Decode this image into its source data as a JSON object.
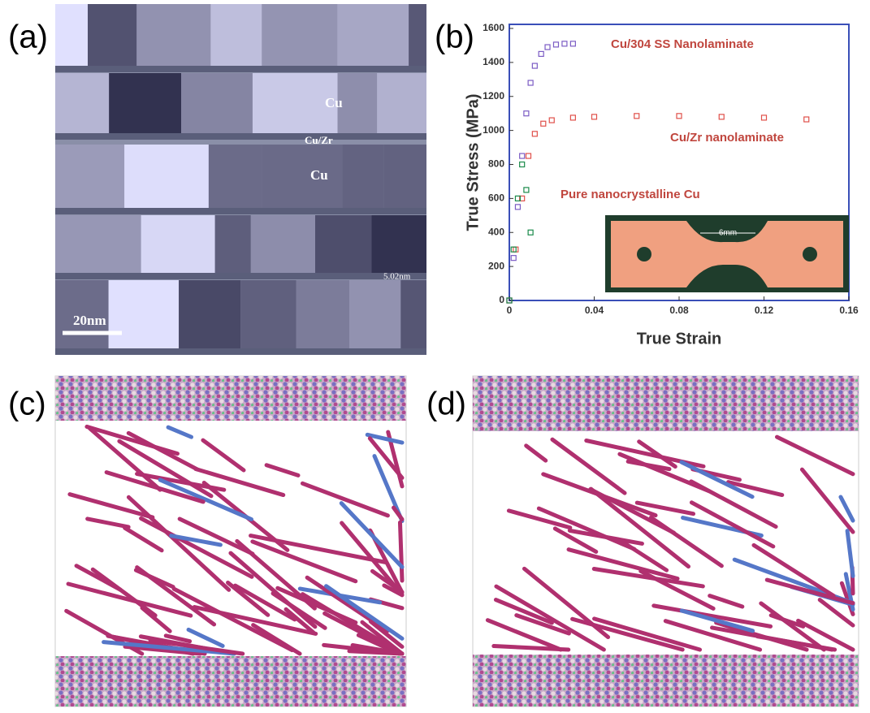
{
  "panel_labels": [
    "(a)",
    "(b)",
    "(c)",
    "(d)"
  ],
  "panel_a": {
    "labels": [
      "Cu",
      "Cu/Zr",
      "Cu"
    ],
    "thickness": "5.02nm",
    "scale_bar": "20nm"
  },
  "chart_data": {
    "type": "scatter",
    "xlabel": "True Strain",
    "ylabel": "True Stress (MPa)",
    "xlim": [
      0,
      0.16
    ],
    "ylim": [
      0,
      1600
    ],
    "xticks": [
      0,
      0.04,
      0.08,
      0.12,
      0.16
    ],
    "yticks": [
      0,
      200,
      400,
      600,
      800,
      1000,
      1200,
      1400,
      1600
    ],
    "series": [
      {
        "name": "Cu/304 SS Nanolaminate",
        "color": "#7b5cc4",
        "x": [
          0,
          0.002,
          0.004,
          0.006,
          0.008,
          0.01,
          0.012,
          0.015,
          0.018,
          0.022,
          0.026,
          0.03
        ],
        "values": [
          0,
          250,
          550,
          850,
          1100,
          1280,
          1380,
          1450,
          1490,
          1505,
          1510,
          1510
        ]
      },
      {
        "name": "Cu/Zr nanolaminate",
        "color": "#e0504a",
        "x": [
          0,
          0.003,
          0.006,
          0.009,
          0.012,
          0.016,
          0.02,
          0.03,
          0.04,
          0.06,
          0.08,
          0.1,
          0.12,
          0.14
        ],
        "values": [
          0,
          300,
          600,
          850,
          980,
          1040,
          1060,
          1075,
          1080,
          1085,
          1085,
          1080,
          1075,
          1065
        ]
      },
      {
        "name": "Pure nanocrystalline Cu",
        "color": "#1a8a4a",
        "x": [
          0,
          0.002,
          0.004,
          0.006,
          0.008,
          0.01
        ],
        "values": [
          0,
          300,
          600,
          800,
          650,
          400
        ]
      }
    ],
    "inset_label": "6mm"
  }
}
